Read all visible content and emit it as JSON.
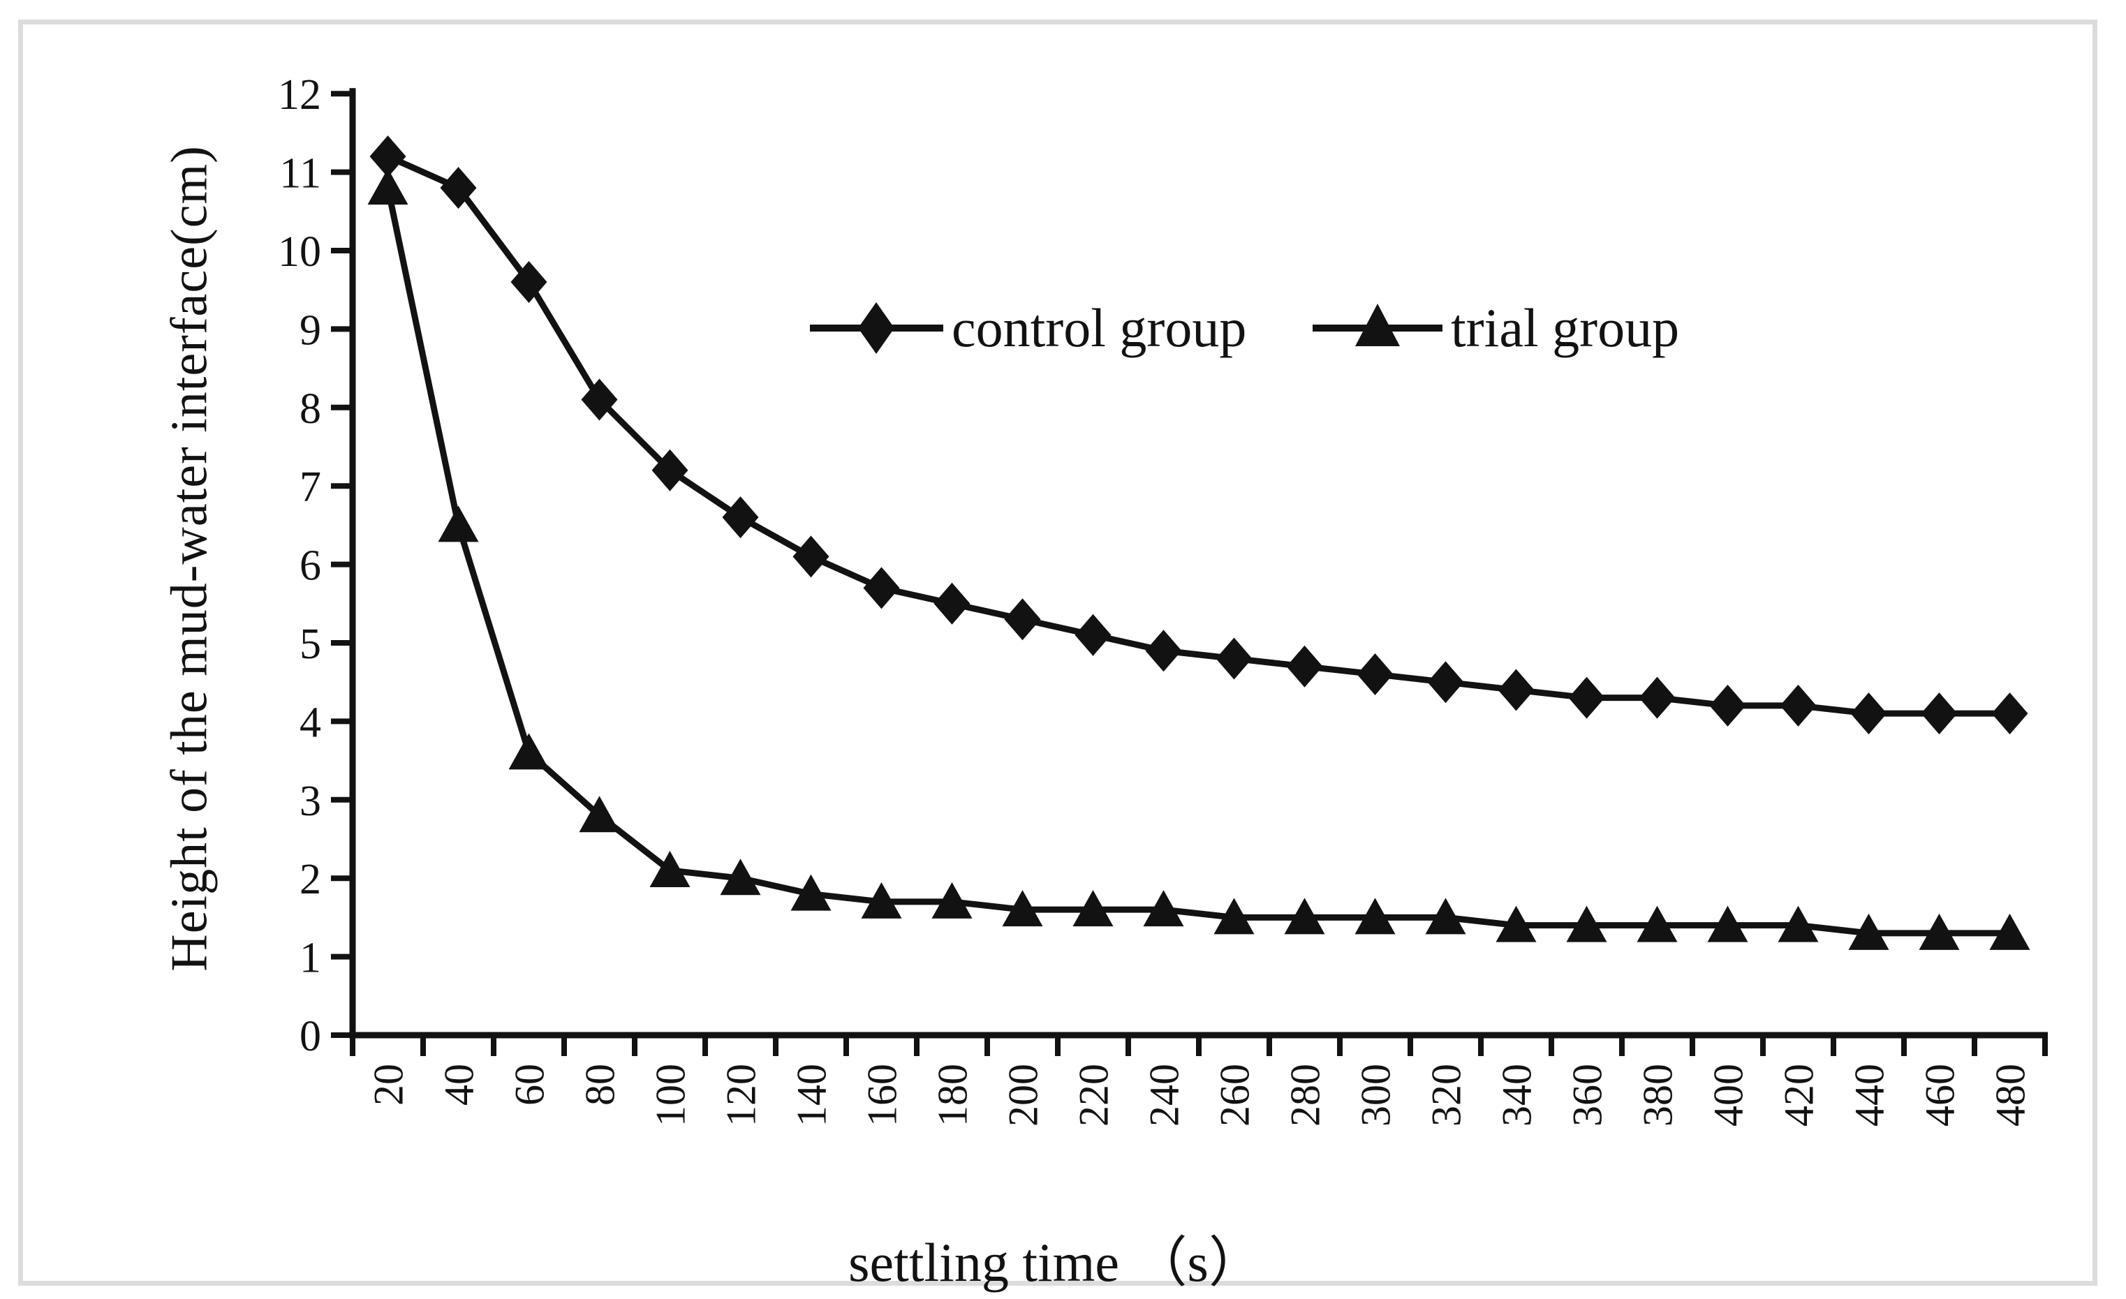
{
  "chart_data": {
    "type": "line",
    "title": "",
    "xlabel": "settling time （s）",
    "ylabel": "Height of the mud-water interface(cm)",
    "categories": [
      20,
      40,
      60,
      80,
      100,
      120,
      140,
      160,
      180,
      200,
      220,
      240,
      260,
      280,
      300,
      320,
      340,
      360,
      380,
      400,
      420,
      440,
      460,
      480
    ],
    "series": [
      {
        "name": "control group",
        "marker": "diamond",
        "color": "#121212",
        "values": [
          11.2,
          10.8,
          9.6,
          8.1,
          7.2,
          6.6,
          6.1,
          5.7,
          5.5,
          5.3,
          5.1,
          4.9,
          4.8,
          4.7,
          4.6,
          4.5,
          4.4,
          4.3,
          4.3,
          4.2,
          4.2,
          4.1,
          4.1,
          4.1
        ]
      },
      {
        "name": "trial group",
        "marker": "triangle",
        "color": "#121212",
        "values": [
          10.8,
          6.5,
          3.6,
          2.8,
          2.1,
          2.0,
          1.8,
          1.7,
          1.7,
          1.6,
          1.6,
          1.6,
          1.5,
          1.5,
          1.5,
          1.5,
          1.4,
          1.4,
          1.4,
          1.4,
          1.4,
          1.3,
          1.3,
          1.3
        ]
      }
    ],
    "ylim": [
      0,
      12
    ],
    "yticks": [
      0,
      1,
      2,
      3,
      4,
      5,
      6,
      7,
      8,
      9,
      10,
      11,
      12
    ],
    "grid": false,
    "legend_position": "top-center-inside"
  },
  "colors": {
    "series": "#121212",
    "frame_border": "#dcdcdc",
    "background": "#ffffff"
  }
}
